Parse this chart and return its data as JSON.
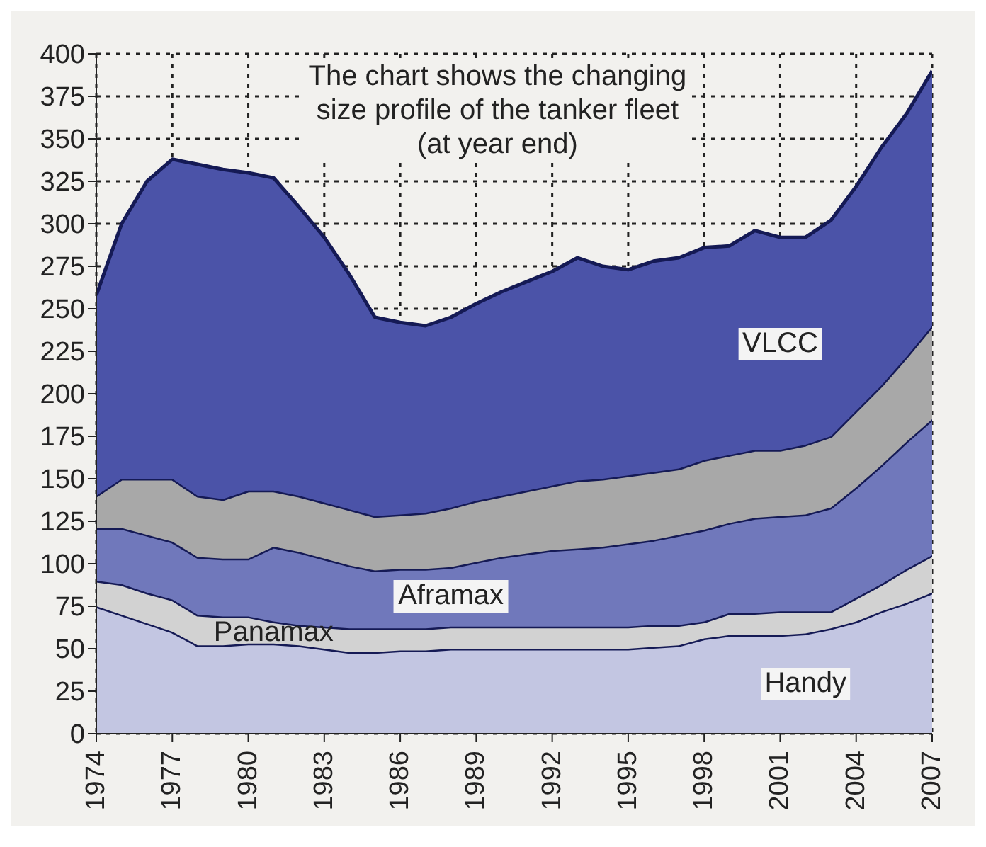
{
  "chart_data": {
    "type": "area",
    "stacked": true,
    "grid": true,
    "legend": false,
    "annotations": [
      "The chart shows the changing size profile of the tanker fleet (at year end)"
    ],
    "x": [
      1974,
      1975,
      1976,
      1977,
      1978,
      1979,
      1980,
      1981,
      1982,
      1983,
      1984,
      1985,
      1986,
      1987,
      1988,
      1989,
      1990,
      1991,
      1992,
      1993,
      1994,
      1995,
      1996,
      1997,
      1998,
      1999,
      2000,
      2001,
      2002,
      2003,
      2004,
      2005,
      2006,
      2007
    ],
    "xlim": [
      1974,
      2007
    ],
    "xticks": [
      1974,
      1977,
      1980,
      1983,
      1986,
      1989,
      1992,
      1995,
      1998,
      2001,
      2004,
      2007
    ],
    "ylim": [
      0,
      400
    ],
    "yticks": [
      0,
      25,
      50,
      75,
      100,
      125,
      150,
      175,
      200,
      225,
      250,
      275,
      300,
      325,
      350,
      375,
      400
    ],
    "series": [
      {
        "name": "Handy",
        "color": "#c3c6e2",
        "values": [
          75,
          70,
          65,
          60,
          52,
          52,
          53,
          53,
          52,
          50,
          48,
          48,
          49,
          49,
          50,
          50,
          50,
          50,
          50,
          50,
          50,
          50,
          51,
          52,
          56,
          58,
          58,
          58,
          59,
          62,
          66,
          72,
          77,
          83
        ]
      },
      {
        "name": "Panamax",
        "color": "#d2d2d2",
        "values": [
          15,
          18,
          18,
          19,
          18,
          17,
          16,
          13,
          12,
          13,
          14,
          14,
          13,
          13,
          13,
          13,
          13,
          13,
          13,
          13,
          13,
          13,
          13,
          12,
          10,
          13,
          13,
          14,
          13,
          10,
          14,
          16,
          20,
          22
        ]
      },
      {
        "name": "Aframax",
        "color": "#7078bb",
        "values": [
          31,
          33,
          34,
          34,
          34,
          34,
          34,
          44,
          43,
          40,
          37,
          34,
          35,
          35,
          35,
          38,
          41,
          43,
          45,
          46,
          47,
          49,
          50,
          53,
          54,
          53,
          56,
          56,
          57,
          61,
          65,
          70,
          75,
          80
        ]
      },
      {
        "color": "#a8a8a8",
        "values": [
          19,
          29,
          33,
          37,
          36,
          35,
          40,
          33,
          33,
          33,
          33,
          32,
          32,
          33,
          35,
          36,
          36,
          37,
          38,
          40,
          40,
          40,
          40,
          39,
          41,
          40,
          40,
          39,
          41,
          42,
          45,
          47,
          50,
          55
        ]
      },
      {
        "name": "VLCC",
        "color": "#4b53a8",
        "values": [
          118,
          150,
          175,
          188,
          195,
          194,
          187,
          184,
          170,
          156,
          138,
          117,
          113,
          110,
          112,
          116,
          120,
          123,
          126,
          131,
          125,
          121,
          124,
          124,
          125,
          123,
          129,
          125,
          122,
          127,
          132,
          140,
          143,
          150
        ]
      }
    ]
  }
}
